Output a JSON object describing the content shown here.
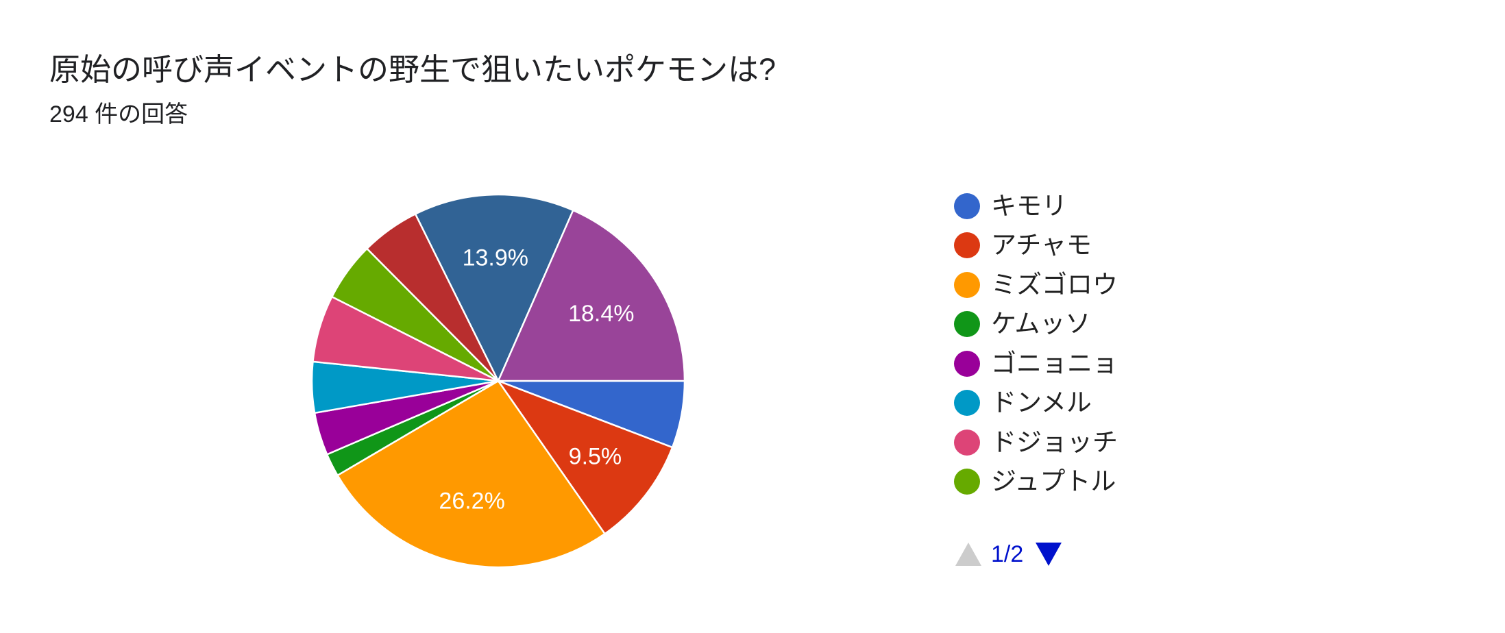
{
  "header": {
    "title": "原始の呼び声イベントの野生で狙いたいポケモンは?",
    "response_count": "294 件の回答"
  },
  "chart_data": {
    "type": "pie",
    "title": "原始の呼び声イベントの野生で狙いたいポケモンは?",
    "subtitle": "294 件の回答",
    "legend_position": "right",
    "slices": [
      {
        "label": "キモリ",
        "value": 5.8,
        "color": "#3366cc",
        "display": ""
      },
      {
        "label": "アチャモ",
        "value": 9.5,
        "color": "#dc3912",
        "display": "9.5%"
      },
      {
        "label": "ミズゴロウ",
        "value": 26.2,
        "color": "#ff9900",
        "display": "26.2%"
      },
      {
        "label": "ケムッソ",
        "value": 2.0,
        "color": "#109618",
        "display": ""
      },
      {
        "label": "ゴニョニョ",
        "value": 3.7,
        "color": "#990099",
        "display": ""
      },
      {
        "label": "ドンメル",
        "value": 4.4,
        "color": "#0099c6",
        "display": ""
      },
      {
        "label": "ドジョッチ",
        "value": 5.8,
        "color": "#dd4477",
        "display": ""
      },
      {
        "label": "ジュプトル",
        "value": 5.1,
        "color": "#66aa00",
        "display": ""
      },
      {
        "label": "",
        "value": 5.1,
        "color": "#b82e2e",
        "display": ""
      },
      {
        "label": "",
        "value": 13.9,
        "color": "#316395",
        "display": "13.9%"
      },
      {
        "label": "",
        "value": 18.4,
        "color": "#994499",
        "display": "18.4%"
      }
    ]
  },
  "legend": {
    "items": [
      {
        "label": "キモリ",
        "color": "#3366cc"
      },
      {
        "label": "アチャモ",
        "color": "#dc3912"
      },
      {
        "label": "ミズゴロウ",
        "color": "#ff9900"
      },
      {
        "label": "ケムッソ",
        "color": "#109618"
      },
      {
        "label": "ゴニョニョ",
        "color": "#990099"
      },
      {
        "label": "ドンメル",
        "color": "#0099c6"
      },
      {
        "label": "ドジョッチ",
        "color": "#dd4477"
      },
      {
        "label": "ジュプトル",
        "color": "#66aa00"
      }
    ],
    "pager": {
      "text": "1/2",
      "prev_icon": "triangle-up-icon",
      "next_icon": "triangle-down-icon",
      "active_color": "#0011cc",
      "disabled_color": "#cccccc"
    }
  }
}
